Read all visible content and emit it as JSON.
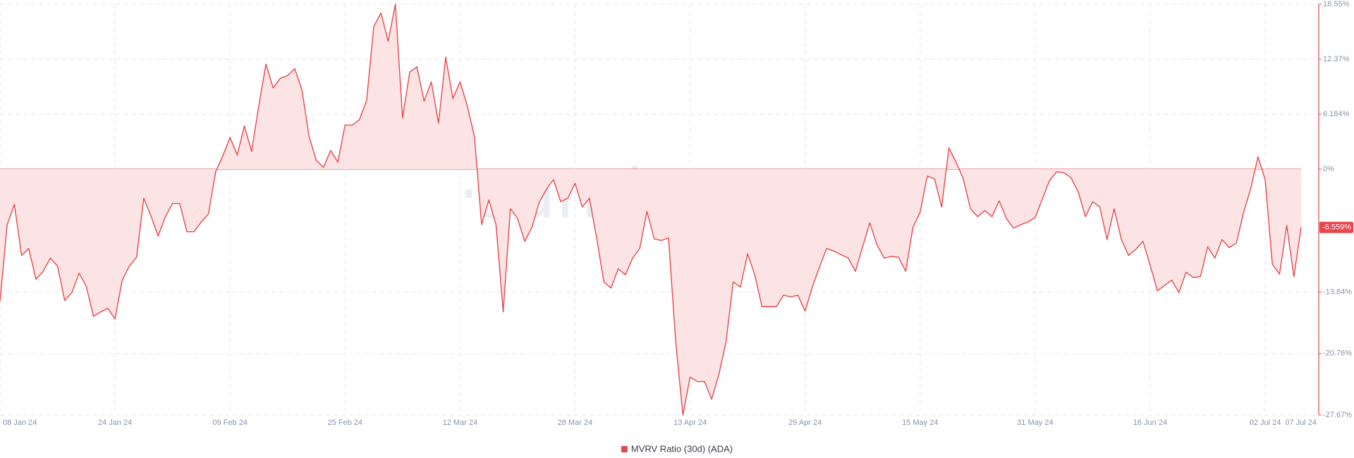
{
  "chart_data": {
    "type": "area",
    "watermark": "·santiment·",
    "grid": true,
    "legend_position": "bottom",
    "annotation": {
      "value": -6.559,
      "label": "-6.559%"
    },
    "xlim": [
      "2024-01-08",
      "2024-07-07"
    ],
    "xticks": [
      {
        "value": "2024-01-08",
        "label": "08 Jan 24"
      },
      {
        "value": "2024-01-24",
        "label": "24 Jan 24"
      },
      {
        "value": "2024-02-09",
        "label": "09 Feb 24"
      },
      {
        "value": "2024-02-25",
        "label": "25 Feb 24"
      },
      {
        "value": "2024-03-12",
        "label": "12 Mar 24"
      },
      {
        "value": "2024-03-28",
        "label": "28 Mar 24"
      },
      {
        "value": "2024-04-13",
        "label": "13 Apr 24"
      },
      {
        "value": "2024-04-29",
        "label": "29 Apr 24"
      },
      {
        "value": "2024-05-15",
        "label": "15 May 24"
      },
      {
        "value": "2024-05-31",
        "label": "31 May 24"
      },
      {
        "value": "2024-06-16",
        "label": "16 Jun 24"
      },
      {
        "value": "2024-07-02",
        "label": "02 Jul 24"
      },
      {
        "value": "2024-07-07",
        "label": "07 Jul 24"
      }
    ],
    "ylim": [
      -27.67,
      18.55
    ],
    "yticks": [
      {
        "value": 18.55,
        "label": "18.55%"
      },
      {
        "value": 12.37,
        "label": "12.37%"
      },
      {
        "value": 6.184,
        "label": "6.184%"
      },
      {
        "value": 0,
        "label": "0%"
      },
      {
        "value": -13.84,
        "label": "-13.84%"
      },
      {
        "value": -20.76,
        "label": "-20.76%"
      },
      {
        "value": -27.67,
        "label": "-27.67%"
      }
    ],
    "x": [
      "2024-01-08",
      "2024-01-09",
      "2024-01-10",
      "2024-01-11",
      "2024-01-12",
      "2024-01-13",
      "2024-01-14",
      "2024-01-15",
      "2024-01-16",
      "2024-01-17",
      "2024-01-18",
      "2024-01-19",
      "2024-01-20",
      "2024-01-21",
      "2024-01-22",
      "2024-01-23",
      "2024-01-24",
      "2024-01-25",
      "2024-01-26",
      "2024-01-27",
      "2024-01-28",
      "2024-01-29",
      "2024-01-30",
      "2024-01-31",
      "2024-02-01",
      "2024-02-02",
      "2024-02-03",
      "2024-02-04",
      "2024-02-05",
      "2024-02-06",
      "2024-02-07",
      "2024-02-08",
      "2024-02-09",
      "2024-02-10",
      "2024-02-11",
      "2024-02-12",
      "2024-02-13",
      "2024-02-14",
      "2024-02-15",
      "2024-02-16",
      "2024-02-17",
      "2024-02-18",
      "2024-02-19",
      "2024-02-20",
      "2024-02-21",
      "2024-02-22",
      "2024-02-23",
      "2024-02-24",
      "2024-02-25",
      "2024-02-26",
      "2024-02-27",
      "2024-02-28",
      "2024-02-29",
      "2024-03-01",
      "2024-03-02",
      "2024-03-03",
      "2024-03-04",
      "2024-03-05",
      "2024-03-06",
      "2024-03-07",
      "2024-03-08",
      "2024-03-09",
      "2024-03-10",
      "2024-03-11",
      "2024-03-12",
      "2024-03-13",
      "2024-03-14",
      "2024-03-15",
      "2024-03-16",
      "2024-03-17",
      "2024-03-18",
      "2024-03-19",
      "2024-03-20",
      "2024-03-21",
      "2024-03-22",
      "2024-03-23",
      "2024-03-24",
      "2024-03-25",
      "2024-03-26",
      "2024-03-27",
      "2024-03-28",
      "2024-03-29",
      "2024-03-30",
      "2024-03-31",
      "2024-04-01",
      "2024-04-02",
      "2024-04-03",
      "2024-04-04",
      "2024-04-05",
      "2024-04-06",
      "2024-04-07",
      "2024-04-08",
      "2024-04-09",
      "2024-04-10",
      "2024-04-11",
      "2024-04-12",
      "2024-04-13",
      "2024-04-14",
      "2024-04-15",
      "2024-04-16",
      "2024-04-17",
      "2024-04-18",
      "2024-04-19",
      "2024-04-20",
      "2024-04-21",
      "2024-04-22",
      "2024-04-23",
      "2024-04-24",
      "2024-04-25",
      "2024-04-26",
      "2024-04-27",
      "2024-04-28",
      "2024-04-29",
      "2024-04-30",
      "2024-05-01",
      "2024-05-02",
      "2024-05-03",
      "2024-05-04",
      "2024-05-05",
      "2024-05-06",
      "2024-05-07",
      "2024-05-08",
      "2024-05-09",
      "2024-05-10",
      "2024-05-11",
      "2024-05-12",
      "2024-05-13",
      "2024-05-14",
      "2024-05-15",
      "2024-05-16",
      "2024-05-17",
      "2024-05-18",
      "2024-05-19",
      "2024-05-20",
      "2024-05-21",
      "2024-05-22",
      "2024-05-23",
      "2024-05-24",
      "2024-05-25",
      "2024-05-26",
      "2024-05-27",
      "2024-05-28",
      "2024-05-29",
      "2024-05-30",
      "2024-05-31",
      "2024-06-01",
      "2024-06-02",
      "2024-06-03",
      "2024-06-04",
      "2024-06-05",
      "2024-06-06",
      "2024-06-07",
      "2024-06-08",
      "2024-06-09",
      "2024-06-10",
      "2024-06-11",
      "2024-06-12",
      "2024-06-13",
      "2024-06-14",
      "2024-06-15",
      "2024-06-16",
      "2024-06-17",
      "2024-06-18",
      "2024-06-19",
      "2024-06-20",
      "2024-06-21",
      "2024-06-22",
      "2024-06-23",
      "2024-06-24",
      "2024-06-25",
      "2024-06-26",
      "2024-06-27",
      "2024-06-28",
      "2024-06-29",
      "2024-06-30",
      "2024-07-01",
      "2024-07-02",
      "2024-07-03",
      "2024-07-04",
      "2024-07-05",
      "2024-07-06",
      "2024-07-07"
    ],
    "series": [
      {
        "name": "MVRV Ratio (30d) (ADA)",
        "color": "#e5484d",
        "fill": "#fde4e4",
        "values": [
          -14.88,
          -6.25,
          -3.97,
          -9.72,
          -8.93,
          -12.4,
          -11.51,
          -10.02,
          -10.91,
          -14.78,
          -13.89,
          -11.71,
          -13.19,
          -16.57,
          -16.07,
          -15.67,
          -16.87,
          -12.5,
          -10.91,
          -9.92,
          -3.27,
          -5.26,
          -7.54,
          -5.36,
          -3.87,
          -3.87,
          -7.04,
          -7.04,
          -5.95,
          -5.06,
          -0.3,
          1.49,
          3.57,
          1.59,
          4.86,
          1.98,
          7.14,
          11.81,
          9.13,
          10.22,
          10.52,
          11.31,
          8.93,
          3.67,
          0.99,
          0.2,
          2.08,
          0.79,
          4.96,
          4.96,
          5.56,
          7.74,
          16.07,
          17.56,
          14.38,
          18.55,
          5.75,
          10.91,
          11.51,
          7.64,
          9.82,
          5.16,
          12.6,
          7.94,
          9.82,
          7.14,
          3.67,
          -6.25,
          -3.47,
          -6.25,
          -16.07,
          -4.46,
          -5.56,
          -8.13,
          -6.55,
          -3.77,
          -2.28,
          -1.19,
          -3.67,
          -3.27,
          -1.59,
          -4.27,
          -3.27,
          -7.74,
          -12.7,
          -13.39,
          -11.21,
          -11.9,
          -10.02,
          -8.93,
          -4.76,
          -7.84,
          -8.04,
          -7.74,
          -19.44,
          -27.67,
          -23.41,
          -23.91,
          -23.91,
          -25.89,
          -23.12,
          -19.44,
          -12.7,
          -13.29,
          -9.52,
          -11.9,
          -15.48,
          -15.48,
          -15.48,
          -14.19,
          -14.38,
          -14.19,
          -15.97,
          -13.29,
          -11.01,
          -8.93,
          -9.23,
          -9.62,
          -10.02,
          -11.51,
          -8.73,
          -6.05,
          -8.53,
          -10.02,
          -9.82,
          -9.92,
          -11.51,
          -6.55,
          -4.86,
          -0.79,
          -1.09,
          -4.27,
          2.38,
          0.79,
          -1.09,
          -4.46,
          -5.36,
          -4.66,
          -5.36,
          -3.57,
          -5.56,
          -6.65,
          -6.25,
          -5.95,
          -5.46,
          -3.37,
          -1.29,
          -0.3,
          -0.4,
          -0.99,
          -2.58,
          -5.36,
          -3.67,
          -4.27,
          -7.94,
          -4.46,
          -7.94,
          -9.72,
          -9.03,
          -8.13,
          -10.81,
          -13.69,
          -13.1,
          -12.5,
          -13.89,
          -11.61,
          -12.2,
          -12.1,
          -8.73,
          -10.02,
          -7.94,
          -8.83,
          -8.33,
          -4.86,
          -2.18,
          1.39,
          -1.19,
          -10.71,
          -11.81,
          -6.35,
          -12.1,
          -6.559
        ]
      }
    ]
  }
}
